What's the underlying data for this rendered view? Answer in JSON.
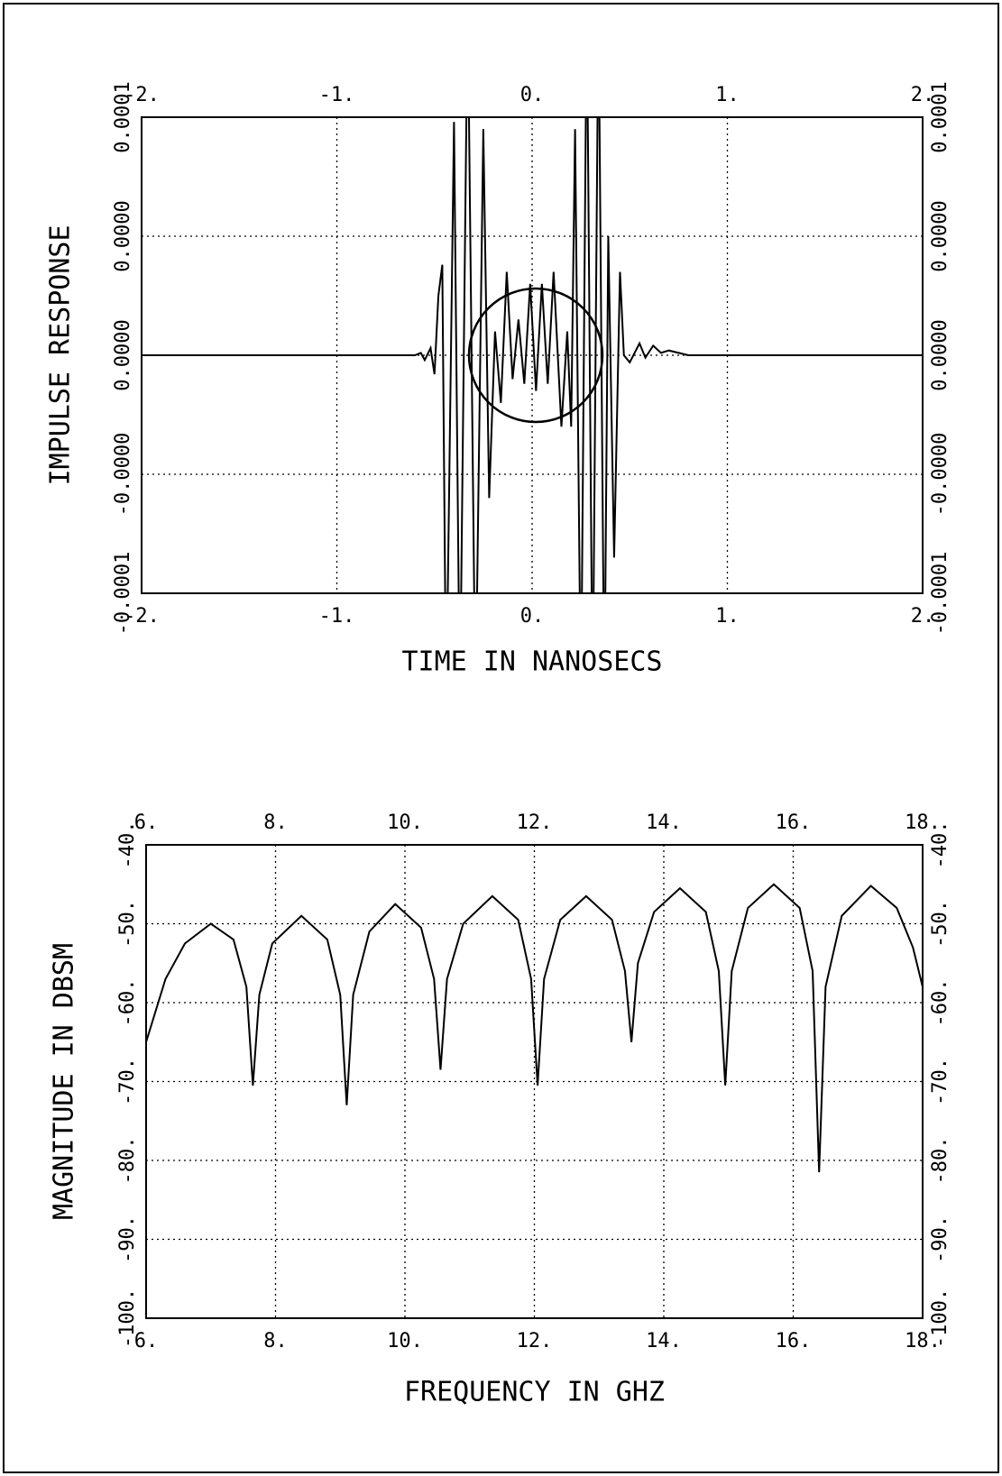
{
  "chart_data": [
    {
      "type": "line",
      "xlabel": "TIME IN NANOSECS",
      "ylabel": "IMPULSE RESPONSE",
      "xlim": [
        -2,
        2
      ],
      "ylim": [
        -0.0001,
        0.0001
      ],
      "xticks": [
        {
          "value": -2,
          "label": "-2."
        },
        {
          "value": -1,
          "label": "-1."
        },
        {
          "value": 0,
          "label": "0."
        },
        {
          "value": 1,
          "label": "1."
        },
        {
          "value": 2,
          "label": "2."
        }
      ],
      "yticks": [
        -0.0001,
        {
          "value": -5e-05,
          "label": "-0.0000"
        },
        {
          "value": 0,
          "label": "0.0000"
        },
        {
          "value": 5e-05,
          "label": "0.0000"
        },
        0.0001
      ],
      "grid": true,
      "x": [
        -2,
        -0.6,
        -0.57,
        -0.55,
        -0.52,
        -0.5,
        -0.48,
        -0.46,
        -0.44,
        -0.4,
        -0.37,
        -0.33,
        -0.29,
        -0.25,
        -0.22,
        -0.19,
        -0.16,
        -0.13,
        -0.1,
        -0.07,
        -0.04,
        -0.01,
        0.02,
        0.05,
        0.08,
        0.11,
        0.15,
        0.18,
        0.2,
        0.22,
        0.25,
        0.28,
        0.31,
        0.34,
        0.37,
        0.39,
        0.42,
        0.45,
        0.47,
        0.5,
        0.55,
        0.58,
        0.62,
        0.66,
        0.7,
        0.8,
        2
      ],
      "series": [
        {
          "color": "#000000",
          "values": [
            0,
            0,
            1e-06,
            -2e-06,
            3e-06,
            -8e-06,
            2.5e-05,
            3.8e-05,
            -0.00015,
            9.8e-05,
            -0.00015,
            0.00015,
            -0.00015,
            9.5e-05,
            -6e-05,
            1e-05,
            -2e-05,
            3.5e-05,
            -1e-05,
            1.5e-05,
            -1.2e-05,
            3e-05,
            -1.5e-05,
            3e-05,
            -1.2e-05,
            3.5e-05,
            -3e-05,
            1e-05,
            -3e-05,
            9.5e-05,
            -0.00015,
            0.00015,
            -0.00015,
            0.00015,
            -0.00015,
            5e-05,
            -8.5e-05,
            3.5e-05,
            0,
            -3e-06,
            5e-06,
            -1e-06,
            4e-06,
            1e-06,
            2e-06,
            0,
            0
          ]
        }
      ]
    },
    {
      "type": "line",
      "xlabel": "FREQUENCY IN GHZ",
      "ylabel": "MAGNITUDE IN DBSM",
      "xlim": [
        6,
        18
      ],
      "ylim": [
        -100,
        -40
      ],
      "xticks": [
        {
          "value": 6,
          "label": "6."
        },
        {
          "value": 8,
          "label": "8."
        },
        {
          "value": 10,
          "label": "10."
        },
        {
          "value": 12,
          "label": "12."
        },
        {
          "value": 14,
          "label": "14."
        },
        {
          "value": 16,
          "label": "16."
        },
        {
          "value": 18,
          "label": "18."
        }
      ],
      "yticks": [
        {
          "value": -100,
          "label": "-100."
        },
        {
          "value": -90,
          "label": "-90."
        },
        {
          "value": -80,
          "label": "-80."
        },
        {
          "value": -70,
          "label": "-70."
        },
        {
          "value": -60,
          "label": "-60."
        },
        {
          "value": -50,
          "label": "-50."
        },
        {
          "value": -40,
          "label": "-40."
        }
      ],
      "grid": true,
      "x": [
        6,
        6.3,
        6.6,
        7.0,
        7.35,
        7.55,
        7.65,
        7.75,
        7.95,
        8.4,
        8.8,
        9.0,
        9.1,
        9.2,
        9.45,
        9.85,
        10.25,
        10.45,
        10.55,
        10.65,
        10.9,
        11.35,
        11.75,
        11.95,
        12.05,
        12.15,
        12.4,
        12.8,
        13.2,
        13.4,
        13.5,
        13.6,
        13.85,
        14.25,
        14.65,
        14.85,
        14.95,
        15.05,
        15.3,
        15.7,
        16.1,
        16.3,
        16.4,
        16.5,
        16.75,
        17.2,
        17.6,
        17.85,
        18
      ],
      "series": [
        {
          "color": "#000000",
          "values": [
            -65,
            -57,
            -52.5,
            -50,
            -52,
            -58,
            -70.5,
            -59,
            -52.5,
            -49,
            -52,
            -59,
            -73,
            -59,
            -51,
            -47.5,
            -50.5,
            -57,
            -68.5,
            -57,
            -50,
            -46.5,
            -49.5,
            -57,
            -70.5,
            -57,
            -49.5,
            -46.5,
            -49.5,
            -56,
            -65,
            -55,
            -48.5,
            -45.5,
            -48.5,
            -56,
            -70.5,
            -56,
            -48,
            -45,
            -48,
            -56,
            -81.5,
            -58,
            -49,
            -45.2,
            -48,
            -53,
            -58
          ]
        }
      ]
    }
  ]
}
